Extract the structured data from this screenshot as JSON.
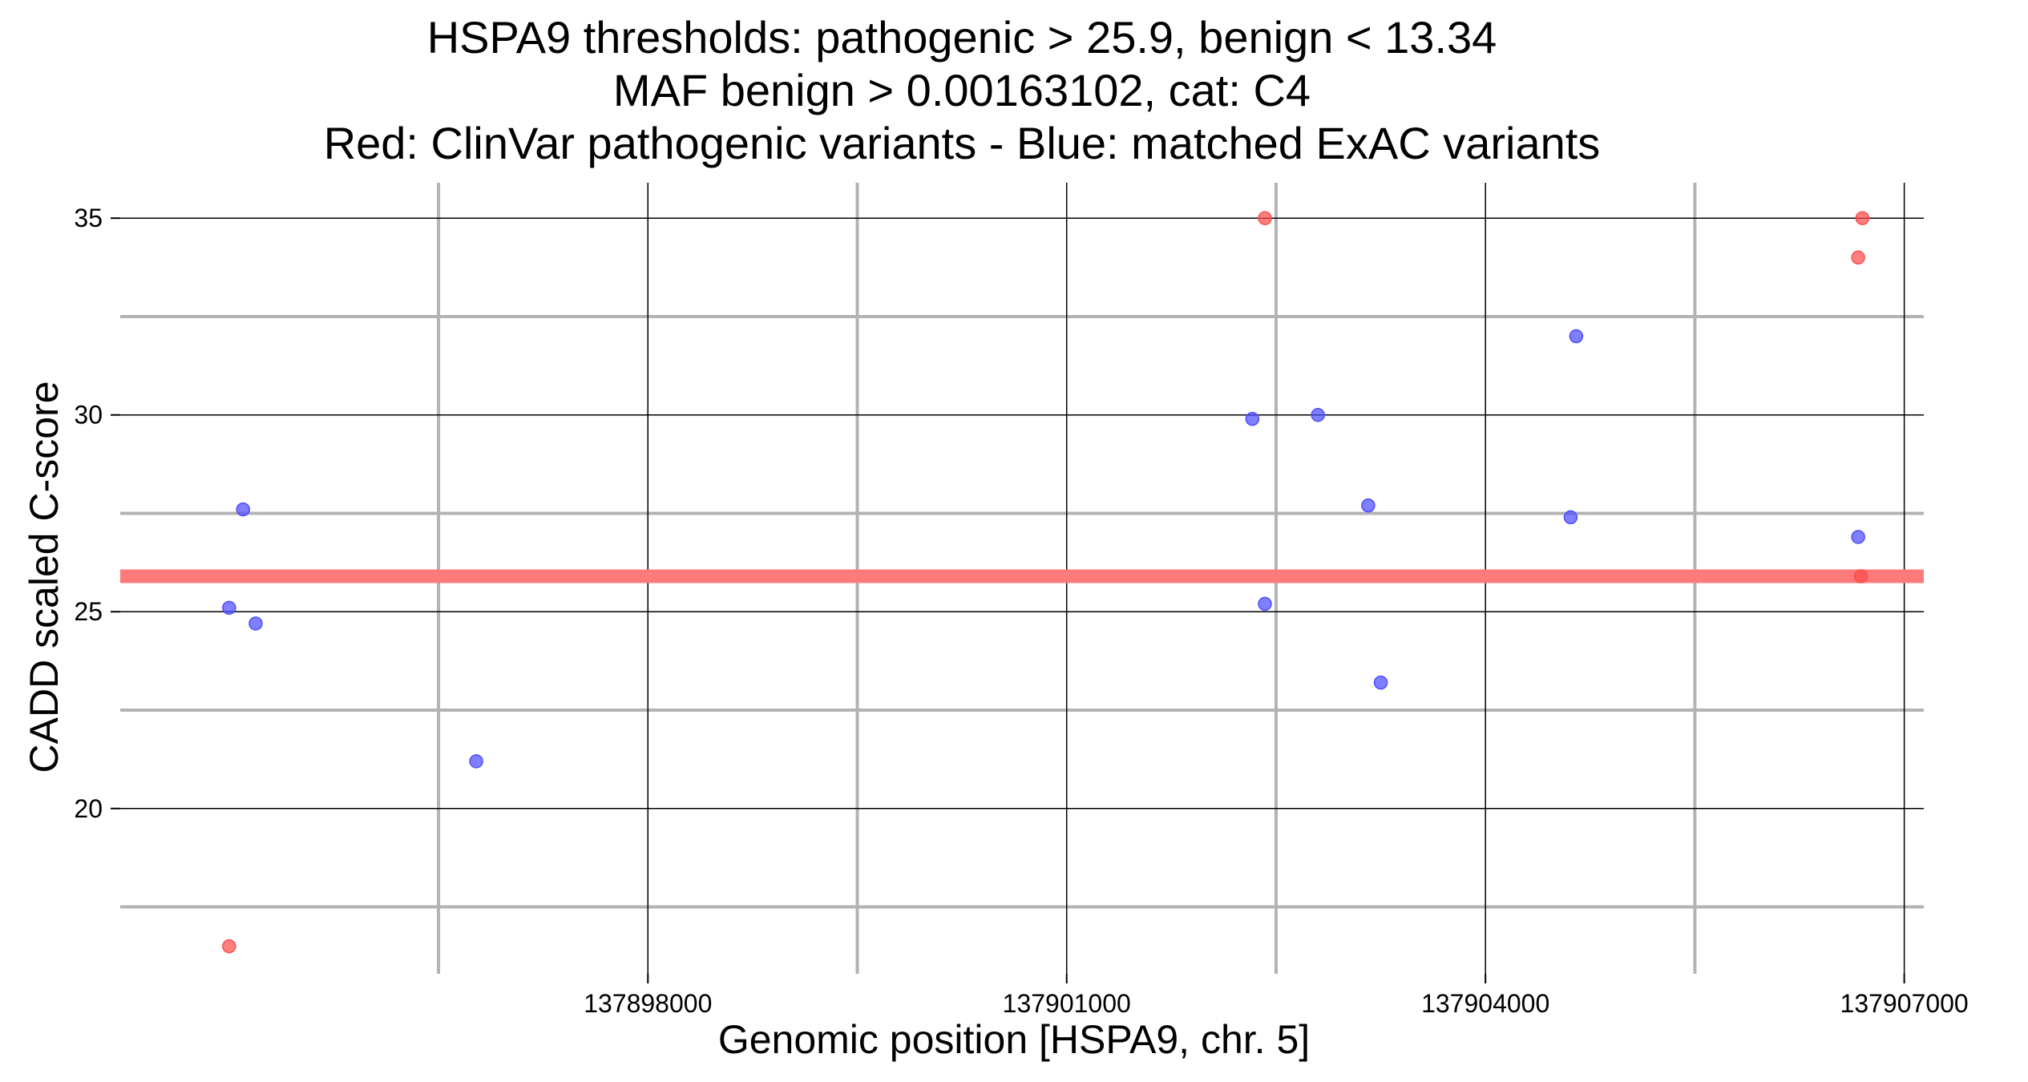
{
  "chart_data": {
    "type": "scatter",
    "title_lines": [
      "HSPA9 thresholds: pathogenic > 25.9, benign < 13.34",
      "MAF benign > 0.00163102, cat: C4",
      "Red: ClinVar pathogenic variants - Blue: matched ExAC variants"
    ],
    "xlabel": "Genomic position [HSPA9, chr. 5]",
    "ylabel": "CADD scaled C-score",
    "xlim": [
      137894220,
      137907140
    ],
    "ylim": [
      15.8,
      35.9
    ],
    "x_ticks": [
      137898000,
      137901000,
      137904000,
      137907000
    ],
    "x_tick_labels": [
      "137898000",
      "137901000",
      "137904000",
      "137907000"
    ],
    "y_ticks": [
      20,
      25,
      30,
      35
    ],
    "y_tick_labels": [
      "20",
      "25",
      "30",
      "35"
    ],
    "grid": true,
    "threshold_line": {
      "y": 25.9,
      "color": "#ff7a7a"
    },
    "series": [
      {
        "color": "#ff4d4d",
        "points": [
          {
            "x": 137895000,
            "y": 16.5
          },
          {
            "x": 137902420,
            "y": 35.0
          },
          {
            "x": 137906700,
            "y": 35.0
          },
          {
            "x": 137906670,
            "y": 34.0
          },
          {
            "x": 137906690,
            "y": 25.9
          }
        ]
      },
      {
        "color": "#4d4dff",
        "points": [
          {
            "x": 137895100,
            "y": 27.6
          },
          {
            "x": 137895000,
            "y": 25.1
          },
          {
            "x": 137895190,
            "y": 24.7
          },
          {
            "x": 137896770,
            "y": 21.2
          },
          {
            "x": 137902330,
            "y": 29.9
          },
          {
            "x": 137902800,
            "y": 30.0
          },
          {
            "x": 137903160,
            "y": 27.7
          },
          {
            "x": 137902420,
            "y": 25.2
          },
          {
            "x": 137903250,
            "y": 23.2
          },
          {
            "x": 137904650,
            "y": 32.0
          },
          {
            "x": 137904610,
            "y": 27.4
          },
          {
            "x": 137906670,
            "y": 26.9
          }
        ]
      }
    ]
  }
}
